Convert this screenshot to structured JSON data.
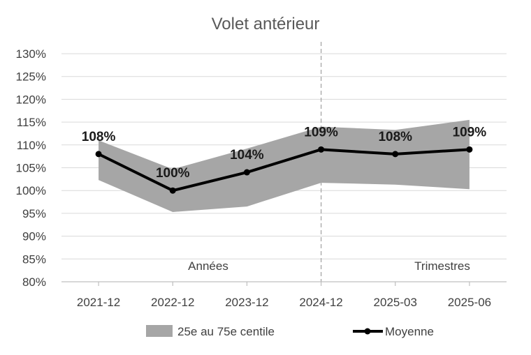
{
  "chart_data": {
    "type": "line",
    "title": "Volet antérieur",
    "categories": [
      "2021-12",
      "2022-12",
      "2023-12",
      "2024-12",
      "2025-03",
      "2025-06"
    ],
    "series": [
      {
        "name": "Moyenne",
        "values": [
          108,
          100,
          104,
          109,
          108,
          109
        ],
        "color": "#000000"
      }
    ],
    "band": {
      "name": "25e au 75e centile",
      "lower": [
        102.3,
        95.3,
        96.5,
        101.7,
        101.3,
        100.3
      ],
      "upper": [
        111.0,
        104.7,
        109.2,
        114.0,
        113.3,
        115.5
      ],
      "color": "#a6a6a6"
    },
    "data_labels": [
      "108%",
      "100%",
      "104%",
      "109%",
      "108%",
      "109%"
    ],
    "yticks": [
      "130%",
      "125%",
      "120%",
      "115%",
      "110%",
      "105%",
      "100%",
      "95%",
      "90%",
      "85%",
      "80%"
    ],
    "ylim": [
      80,
      130
    ],
    "ystep": 5,
    "grid": true,
    "divider_after_category": "2024-12",
    "annotations": {
      "left": "Années",
      "right": "Trimestres"
    },
    "legend_position": "bottom"
  }
}
